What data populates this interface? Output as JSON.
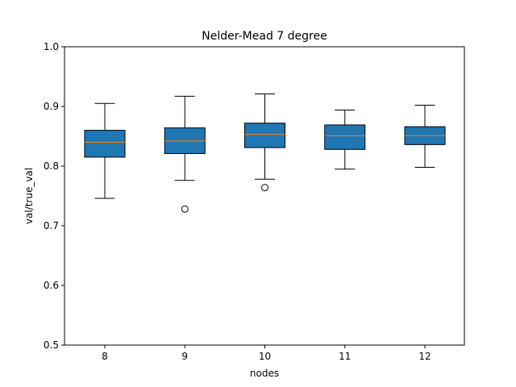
{
  "chart_data": {
    "type": "box",
    "title": "Nelder-Mead 7 degree",
    "xlabel": "nodes",
    "ylabel": "val/true_val",
    "ylim": [
      0.5,
      1.0
    ],
    "yticks": [
      "0.5",
      "0.6",
      "0.7",
      "0.8",
      "0.9",
      "1.0"
    ],
    "categories": [
      "8",
      "9",
      "10",
      "11",
      "12"
    ],
    "boxes": [
      {
        "category": "8",
        "whisker_low": 0.746,
        "q1": 0.815,
        "median": 0.84,
        "q3": 0.86,
        "whisker_high": 0.905,
        "outliers": []
      },
      {
        "category": "9",
        "whisker_low": 0.776,
        "q1": 0.821,
        "median": 0.842,
        "q3": 0.864,
        "whisker_high": 0.917,
        "outliers": [
          0.728
        ]
      },
      {
        "category": "10",
        "whisker_low": 0.778,
        "q1": 0.831,
        "median": 0.853,
        "q3": 0.872,
        "whisker_high": 0.921,
        "outliers": [
          0.764
        ]
      },
      {
        "category": "11",
        "whisker_low": 0.795,
        "q1": 0.828,
        "median": 0.851,
        "q3": 0.869,
        "whisker_high": 0.894,
        "outliers": []
      },
      {
        "category": "12",
        "whisker_low": 0.798,
        "q1": 0.836,
        "median": 0.851,
        "q3": 0.866,
        "whisker_high": 0.902,
        "outliers": []
      }
    ],
    "grid": false,
    "colors": {
      "box_fill": "#1f77b4",
      "median": "#ff7f0e",
      "edge": "#000000",
      "background": "#ffffff"
    }
  }
}
